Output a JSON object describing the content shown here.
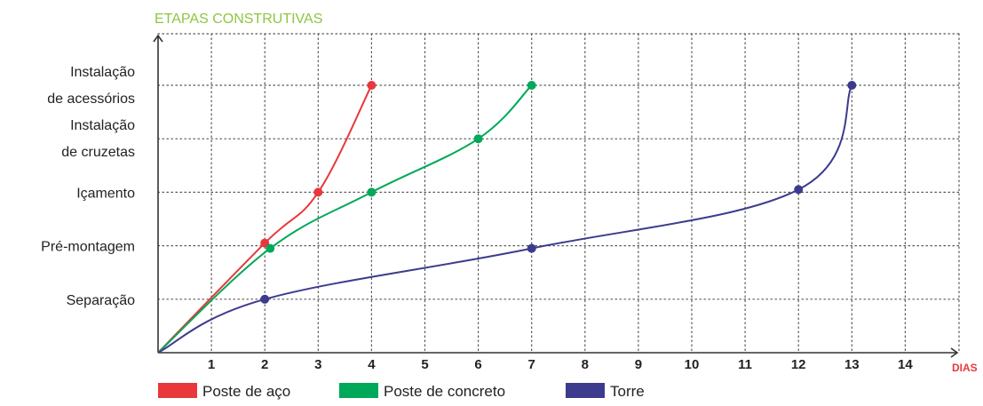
{
  "chart_data": {
    "type": "line",
    "title": "ETAPAS CONSTRUTIVAS",
    "xlabel": "DIAS",
    "ylabel": "ETAPAS CONSTRUTIVAS",
    "x_ticks": [
      "1",
      "2",
      "3",
      "4",
      "5",
      "6",
      "7",
      "8",
      "9",
      "10",
      "11",
      "12",
      "13",
      "14"
    ],
    "y_categories": [
      {
        "line1": "Separação",
        "line2": ""
      },
      {
        "line1": "Pré-montagem",
        "line2": ""
      },
      {
        "line1": "Içamento",
        "line2": ""
      },
      {
        "line1": "Instalação",
        "line2": "de cruzetas"
      },
      {
        "line1": "Instalação",
        "line2": "de acessórios"
      }
    ],
    "xlim": [
      0,
      15
    ],
    "ylim": [
      0,
      5.3
    ],
    "grid": true,
    "legend_position": "bottom",
    "series": [
      {
        "name": "Poste de aço",
        "color": "#e8383b",
        "origin": [
          0,
          0
        ],
        "points": [
          [
            2,
            2.05
          ],
          [
            3,
            3
          ],
          [
            4,
            5
          ]
        ]
      },
      {
        "name": "Poste de concreto",
        "color": "#00a859",
        "origin": [
          0,
          0
        ],
        "points": [
          [
            2.1,
            1.95
          ],
          [
            4,
            3
          ],
          [
            6,
            4
          ],
          [
            7,
            5
          ]
        ]
      },
      {
        "name": "Torre",
        "color": "#3d3b8e",
        "origin": [
          0,
          0
        ],
        "points": [
          [
            2,
            1
          ],
          [
            7,
            1.95
          ],
          [
            12,
            3.05
          ],
          [
            13,
            5
          ]
        ]
      }
    ],
    "colors": {
      "axis": "#333333",
      "grid": "#555555",
      "title": "#8dc63f",
      "xlabel": "#e8383b",
      "text": "#222222"
    }
  }
}
